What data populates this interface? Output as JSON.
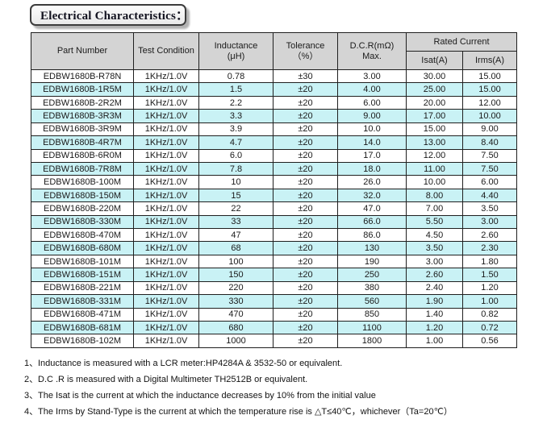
{
  "page": {
    "title": "Electrical Characteristics："
  },
  "colors": {
    "alt_row_bg": "#c9f2f5",
    "header_bg": "#d4d4d4",
    "border": "#1f1f1f"
  },
  "table": {
    "headers": {
      "part_number": "Part Number",
      "test_condition": "Test Condition",
      "inductance_line1": "Inductance",
      "inductance_line2": "(μH)",
      "tolerance_line1": "Tolerance",
      "tolerance_line2": "（%）",
      "dcr_line1": "D.C.R(mΩ)",
      "dcr_line2": "Max.",
      "rated_current": "Rated Current",
      "isat": "Isat(A)",
      "irms": "Irms(A)"
    },
    "rows": [
      {
        "part_number": "EDBW1680B-R78N",
        "test_condition": "1KHz/1.0V",
        "inductance": "0.78",
        "tolerance": "±30",
        "dcr_max": "3.00",
        "isat": "30.00",
        "irms": "15.00"
      },
      {
        "part_number": "EDBW1680B-1R5M",
        "test_condition": "1KHz/1.0V",
        "inductance": "1.5",
        "tolerance": "±20",
        "dcr_max": "4.00",
        "isat": "25.00",
        "irms": "15.00"
      },
      {
        "part_number": "EDBW1680B-2R2M",
        "test_condition": "1KHz/1.0V",
        "inductance": "2.2",
        "tolerance": "±20",
        "dcr_max": "6.00",
        "isat": "20.00",
        "irms": "12.00"
      },
      {
        "part_number": "EDBW1680B-3R3M",
        "test_condition": "1KHz/1.0V",
        "inductance": "3.3",
        "tolerance": "±20",
        "dcr_max": "9.00",
        "isat": "17.00",
        "irms": "10.00"
      },
      {
        "part_number": "EDBW1680B-3R9M",
        "test_condition": "1KHz/1.0V",
        "inductance": "3.9",
        "tolerance": "±20",
        "dcr_max": "10.0",
        "isat": "15.00",
        "irms": "9.00"
      },
      {
        "part_number": "EDBW1680B-4R7M",
        "test_condition": "1KHz/1.0V",
        "inductance": "4.7",
        "tolerance": "±20",
        "dcr_max": "14.0",
        "isat": "13.00",
        "irms": "8.40"
      },
      {
        "part_number": "EDBW1680B-6R0M",
        "test_condition": "1KHz/1.0V",
        "inductance": "6.0",
        "tolerance": "±20",
        "dcr_max": "17.0",
        "isat": "12.00",
        "irms": "7.50"
      },
      {
        "part_number": "EDBW1680B-7R8M",
        "test_condition": "1KHz/1.0V",
        "inductance": "7.8",
        "tolerance": "±20",
        "dcr_max": "18.0",
        "isat": "11.00",
        "irms": "7.50"
      },
      {
        "part_number": "EDBW1680B-100M",
        "test_condition": "1KHz/1.0V",
        "inductance": "10",
        "tolerance": "±20",
        "dcr_max": "26.0",
        "isat": "10.00",
        "irms": "6.00"
      },
      {
        "part_number": "EDBW1680B-150M",
        "test_condition": "1KHz/1.0V",
        "inductance": "15",
        "tolerance": "±20",
        "dcr_max": "32.0",
        "isat": "8.00",
        "irms": "4.40"
      },
      {
        "part_number": "EDBW1680B-220M",
        "test_condition": "1KHz/1.0V",
        "inductance": "22",
        "tolerance": "±20",
        "dcr_max": "47.0",
        "isat": "7.00",
        "irms": "3.50"
      },
      {
        "part_number": "EDBW1680B-330M",
        "test_condition": "1KHz/1.0V",
        "inductance": "33",
        "tolerance": "±20",
        "dcr_max": "66.0",
        "isat": "5.50",
        "irms": "3.00"
      },
      {
        "part_number": "EDBW1680B-470M",
        "test_condition": "1KHz/1.0V",
        "inductance": "47",
        "tolerance": "±20",
        "dcr_max": "86.0",
        "isat": "4.50",
        "irms": "2.60"
      },
      {
        "part_number": "EDBW1680B-680M",
        "test_condition": "1KHz/1.0V",
        "inductance": "68",
        "tolerance": "±20",
        "dcr_max": "130",
        "isat": "3.50",
        "irms": "2.30"
      },
      {
        "part_number": "EDBW1680B-101M",
        "test_condition": "1KHz/1.0V",
        "inductance": "100",
        "tolerance": "±20",
        "dcr_max": "190",
        "isat": "3.00",
        "irms": "1.80"
      },
      {
        "part_number": "EDBW1680B-151M",
        "test_condition": "1KHz/1.0V",
        "inductance": "150",
        "tolerance": "±20",
        "dcr_max": "250",
        "isat": "2.60",
        "irms": "1.50"
      },
      {
        "part_number": "EDBW1680B-221M",
        "test_condition": "1KHz/1.0V",
        "inductance": "220",
        "tolerance": "±20",
        "dcr_max": "380",
        "isat": "2.40",
        "irms": "1.20"
      },
      {
        "part_number": "EDBW1680B-331M",
        "test_condition": "1KHz/1.0V",
        "inductance": "330",
        "tolerance": "±20",
        "dcr_max": "560",
        "isat": "1.90",
        "irms": "1.00"
      },
      {
        "part_number": "EDBW1680B-471M",
        "test_condition": "1KHz/1.0V",
        "inductance": "470",
        "tolerance": "±20",
        "dcr_max": "850",
        "isat": "1.40",
        "irms": "0.82"
      },
      {
        "part_number": "EDBW1680B-681M",
        "test_condition": "1KHz/1.0V",
        "inductance": "680",
        "tolerance": "±20",
        "dcr_max": "1100",
        "isat": "1.20",
        "irms": "0.72"
      },
      {
        "part_number": "EDBW1680B-102M",
        "test_condition": "1KHz/1.0V",
        "inductance": "1000",
        "tolerance": "±20",
        "dcr_max": "1800",
        "isat": "1.00",
        "irms": "0.56"
      }
    ]
  },
  "notes": [
    {
      "num": "1、",
      "text": "Inductance is measured with a LCR meter:HP4284A & 3532-50 or equivalent."
    },
    {
      "num": "2、",
      "text": "D.C .R is measured with a Digital Multimeter TH2512B or equivalent."
    },
    {
      "num": "3、",
      "text": "The Isat is the current at which the inductance decreases by 10% from the initial value"
    },
    {
      "num": "4、",
      "text": "The Irms by Stand-Type is the current at which the temperature rise is △T≤40℃，whichever（Ta=20℃）"
    }
  ]
}
